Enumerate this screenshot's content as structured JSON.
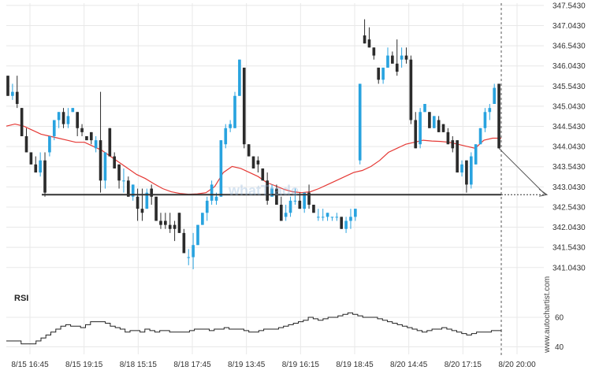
{
  "chart_data": {
    "type": "candlestick",
    "price_axis": {
      "ticks": [
        "347.5430",
        "347.0430",
        "346.5430",
        "346.0430",
        "345.5430",
        "345.0430",
        "344.5430",
        "344.0430",
        "343.5430",
        "343.0430",
        "342.5430",
        "342.0430",
        "341.5430",
        "341.0430"
      ],
      "range": [
        340.55,
        347.6
      ]
    },
    "time_axis": {
      "labels": [
        "8/15 16:45",
        "8/15 19:15",
        "8/18 15:15",
        "8/18 17:45",
        "8/19 13:45",
        "8/19 16:15",
        "8/19 18:45",
        "8/20 14:45",
        "8/20 17:15",
        "8/20 20:00"
      ]
    },
    "candles_ohlc": [
      [
        345.8,
        345.8,
        345.3,
        345.3
      ],
      [
        345.3,
        345.6,
        345.2,
        345.4
      ],
      [
        345.4,
        345.8,
        345.0,
        345.1
      ],
      [
        345.0,
        345.0,
        344.3,
        344.3
      ],
      [
        344.3,
        344.5,
        343.9,
        343.9
      ],
      [
        343.9,
        343.9,
        343.6,
        343.6
      ],
      [
        343.6,
        343.8,
        343.4,
        343.4
      ],
      [
        343.4,
        343.9,
        343.3,
        343.7
      ],
      [
        343.7,
        343.9,
        342.8,
        342.9
      ],
      [
        343.9,
        344.3,
        343.8,
        344.3
      ],
      [
        344.3,
        344.7,
        344.2,
        344.7
      ],
      [
        344.7,
        344.9,
        344.5,
        344.9
      ],
      [
        344.9,
        345.0,
        344.5,
        344.6
      ],
      [
        344.6,
        345.0,
        344.5,
        344.8
      ],
      [
        344.9,
        345.0,
        344.9,
        345.0
      ],
      [
        344.9,
        344.9,
        344.3,
        344.5
      ],
      [
        344.5,
        344.6,
        344.3,
        344.4
      ],
      [
        344.3,
        344.3,
        344.2,
        344.2
      ],
      [
        344.4,
        344.4,
        344.1,
        344.2
      ],
      [
        344.0,
        344.3,
        343.9,
        344.2
      ],
      [
        344.2,
        345.4,
        342.9,
        343.2
      ],
      [
        343.2,
        343.9,
        343.0,
        343.9
      ],
      [
        344.5,
        344.5,
        343.8,
        343.8
      ],
      [
        343.8,
        343.9,
        343.5,
        343.5
      ],
      [
        343.6,
        343.6,
        343.0,
        343.2
      ],
      [
        343.2,
        343.5,
        342.9,
        343.2
      ],
      [
        343.2,
        343.3,
        342.8,
        342.8
      ],
      [
        342.8,
        343.1,
        342.7,
        343.1
      ],
      [
        342.8,
        343.0,
        342.2,
        342.5
      ],
      [
        342.5,
        343.0,
        342.2,
        342.4
      ],
      [
        342.5,
        343.0,
        342.5,
        342.9
      ],
      [
        343.0,
        343.1,
        342.6,
        342.8
      ],
      [
        342.8,
        342.8,
        342.2,
        342.2
      ],
      [
        342.2,
        342.4,
        342.0,
        342.1
      ],
      [
        342.2,
        342.4,
        342.0,
        342.1
      ],
      [
        342.1,
        342.4,
        341.9,
        342.0
      ],
      [
        342.1,
        342.2,
        341.7,
        342.0
      ],
      [
        342.4,
        342.4,
        341.9,
        341.9
      ],
      [
        341.9,
        342.0,
        341.4,
        341.4
      ],
      [
        341.3,
        341.5,
        341.1,
        341.3
      ],
      [
        341.3,
        341.9,
        341.0,
        341.6
      ],
      [
        341.6,
        342.1,
        341.6,
        342.1
      ],
      [
        342.1,
        342.4,
        342.1,
        342.4
      ],
      [
        342.4,
        342.8,
        342.2,
        342.7
      ],
      [
        342.7,
        343.2,
        342.6,
        343.1
      ],
      [
        342.7,
        342.9,
        342.6,
        342.8
      ],
      [
        342.8,
        344.2,
        342.8,
        344.2
      ],
      [
        344.1,
        344.6,
        344.0,
        344.5
      ],
      [
        344.5,
        344.7,
        344.4,
        344.6
      ],
      [
        344.5,
        345.4,
        344.5,
        345.3
      ],
      [
        345.3,
        346.2,
        345.3,
        346.2
      ],
      [
        346.0,
        346.0,
        344.0,
        344.1
      ],
      [
        344.1,
        344.1,
        343.8,
        343.8
      ],
      [
        343.8,
        343.8,
        343.5,
        343.5
      ],
      [
        343.7,
        343.8,
        343.4,
        343.6
      ],
      [
        343.5,
        343.5,
        343.2,
        343.2
      ],
      [
        343.2,
        343.4,
        342.6,
        342.7
      ],
      [
        342.8,
        343.1,
        342.8,
        343.0
      ],
      [
        343.0,
        343.1,
        342.6,
        342.6
      ],
      [
        342.6,
        342.8,
        342.2,
        342.2
      ],
      [
        342.3,
        342.6,
        342.2,
        342.4
      ],
      [
        342.4,
        342.8,
        342.3,
        342.7
      ],
      [
        342.7,
        343.0,
        342.6,
        342.7
      ],
      [
        342.7,
        342.9,
        342.5,
        342.5
      ],
      [
        342.5,
        342.9,
        342.4,
        342.9
      ],
      [
        342.9,
        343.1,
        342.5,
        342.6
      ],
      [
        342.6,
        342.6,
        342.4,
        342.4
      ],
      [
        342.3,
        342.5,
        342.2,
        342.3
      ],
      [
        342.3,
        342.5,
        342.2,
        342.3
      ],
      [
        342.3,
        342.4,
        342.2,
        342.4
      ],
      [
        342.3,
        342.3,
        342.2,
        342.3
      ],
      [
        342.3,
        342.4,
        342.2,
        342.3
      ],
      [
        342.3,
        342.3,
        342.0,
        342.0
      ],
      [
        342.0,
        342.3,
        341.9,
        342.2
      ],
      [
        342.2,
        342.5,
        342.0,
        342.3
      ],
      [
        342.3,
        342.5,
        342.2,
        342.5
      ],
      [
        343.7,
        345.6,
        343.6,
        345.6
      ],
      [
        346.8,
        347.2,
        346.6,
        346.6
      ],
      [
        346.7,
        347.0,
        346.5,
        346.5
      ],
      [
        346.5,
        346.5,
        346.2,
        346.3
      ],
      [
        346.0,
        346.0,
        345.6,
        345.7
      ],
      [
        345.7,
        346.0,
        345.6,
        346.0
      ],
      [
        346.0,
        346.5,
        346.0,
        346.3
      ],
      [
        346.3,
        346.4,
        346.1,
        346.1
      ],
      [
        346.1,
        346.7,
        345.8,
        345.9
      ],
      [
        346.2,
        346.5,
        346.0,
        346.3
      ],
      [
        346.3,
        346.5,
        346.1,
        346.2
      ],
      [
        346.2,
        346.3,
        344.6,
        344.7
      ],
      [
        344.7,
        344.9,
        344.0,
        344.0
      ],
      [
        344.1,
        345.0,
        344.0,
        344.9
      ],
      [
        344.9,
        345.1,
        344.9,
        345.1
      ],
      [
        344.9,
        344.9,
        344.5,
        344.5
      ],
      [
        344.5,
        344.8,
        344.5,
        344.8
      ],
      [
        344.7,
        344.8,
        344.4,
        344.4
      ],
      [
        344.6,
        344.6,
        344.4,
        344.4
      ],
      [
        344.4,
        344.5,
        344.1,
        344.1
      ],
      [
        344.2,
        344.3,
        343.9,
        344.0
      ],
      [
        344.2,
        344.2,
        343.4,
        343.4
      ],
      [
        343.4,
        343.7,
        343.3,
        343.6
      ],
      [
        343.7,
        343.7,
        342.9,
        343.1
      ],
      [
        343.1,
        343.9,
        343.0,
        343.8
      ],
      [
        343.6,
        344.1,
        343.6,
        344.1
      ],
      [
        344.1,
        344.5,
        344.1,
        344.5
      ],
      [
        344.5,
        345.0,
        344.4,
        344.9
      ],
      [
        344.9,
        345.1,
        344.7,
        345.0
      ],
      [
        345.1,
        345.6,
        345.1,
        345.5
      ],
      [
        345.6,
        345.6,
        344.0,
        344.0
      ]
    ],
    "moving_average": [
      344.55,
      344.6,
      344.55,
      344.45,
      344.35,
      344.3,
      344.25,
      344.2,
      344.15,
      344.15,
      344.05,
      343.95,
      343.8,
      343.65,
      343.5,
      343.35,
      343.25,
      343.12,
      343.0,
      342.92,
      342.88,
      342.86,
      342.87,
      342.9,
      343.05,
      343.4,
      343.55,
      343.5,
      343.4,
      343.3,
      343.15,
      343.07,
      342.98,
      342.92,
      342.9,
      342.92,
      343.0,
      343.1,
      343.2,
      343.3,
      343.4,
      343.45,
      343.55,
      343.7,
      343.9,
      344.0,
      344.1,
      344.15,
      344.2,
      344.18,
      344.17,
      344.15,
      344.1,
      344.05,
      344.0,
      344.2,
      344.25,
      344.25
    ],
    "support_level": 342.85,
    "rsi": {
      "title": "RSI",
      "ticks": [
        "60",
        "40"
      ],
      "values": [
        44,
        44,
        44,
        42,
        42,
        42,
        44,
        46,
        48,
        50,
        52,
        54,
        55,
        54,
        54,
        53,
        55,
        57,
        57,
        57,
        56,
        54,
        53,
        52,
        50,
        51,
        51,
        50,
        52,
        51,
        50,
        51,
        51,
        50,
        50,
        50,
        50,
        51,
        52,
        52,
        52,
        51,
        52,
        52,
        53,
        52,
        52,
        52,
        51,
        50,
        50,
        51,
        52,
        52,
        52,
        53,
        54,
        55,
        56,
        57,
        58,
        60,
        59,
        58,
        59,
        60,
        60,
        61,
        62,
        63,
        62,
        61,
        60,
        60,
        60,
        59,
        58,
        57,
        56,
        55,
        54,
        53,
        52,
        51,
        50,
        51,
        52,
        52,
        53,
        52,
        51,
        50,
        49,
        48,
        49,
        50,
        50,
        50,
        51,
        51,
        50
      ],
      "range": [
        36,
        68
      ]
    },
    "watermark": "whatTrade",
    "brand": "www.autochartist.com",
    "colors": {
      "bull": "#29a3df",
      "bear": "#2b2b2b",
      "ma": "#e53935",
      "support": "#333333",
      "projection": "#555555",
      "grid": "#e8e8e8"
    }
  }
}
